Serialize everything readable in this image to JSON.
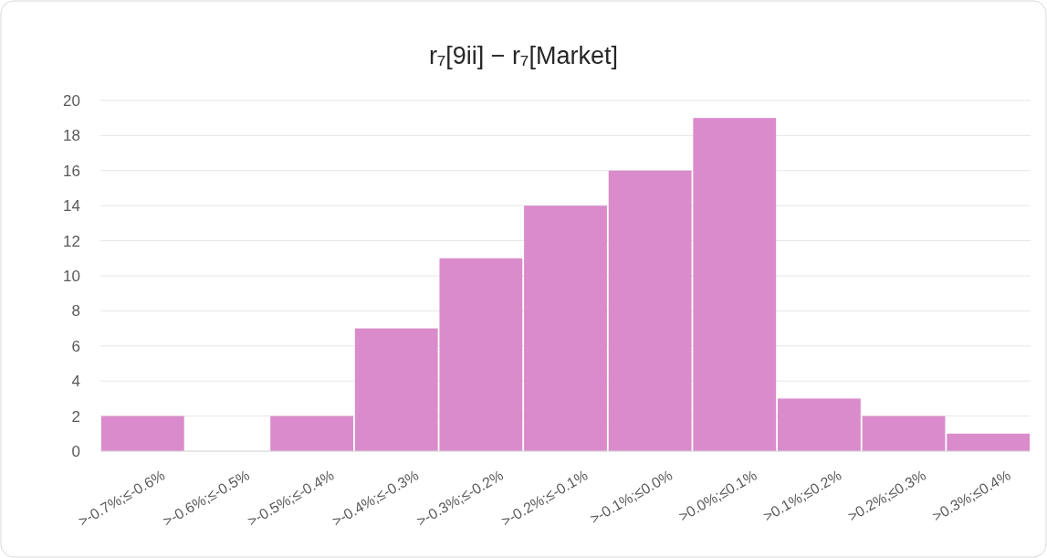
{
  "chart_data": {
    "type": "bar",
    "title": "r₇[9ii] − r₇[Market]",
    "categories": [
      ">-0.7%;≤-0.6%",
      ">-0.6%;≤-0.5%",
      ">-0.5%;≤-0.4%",
      ">-0.4%;≤-0.3%",
      ">-0.3%;≤-0.2%",
      ">-0.2%;≤-0.1%",
      ">-0.1%;≤0.0%",
      ">0.0%;≤0.1%",
      ">0.1%;≤0.2%",
      ">0.2%;≤0.3%",
      ">0.3%;≤0.4%"
    ],
    "values": [
      2,
      0,
      2,
      7,
      11,
      14,
      16,
      19,
      3,
      2,
      1
    ],
    "color": "#da8bcb",
    "ylim": [
      0,
      20
    ],
    "yticks": [
      0,
      2,
      4,
      6,
      8,
      10,
      12,
      14,
      16,
      18,
      20
    ],
    "grid": "y"
  }
}
